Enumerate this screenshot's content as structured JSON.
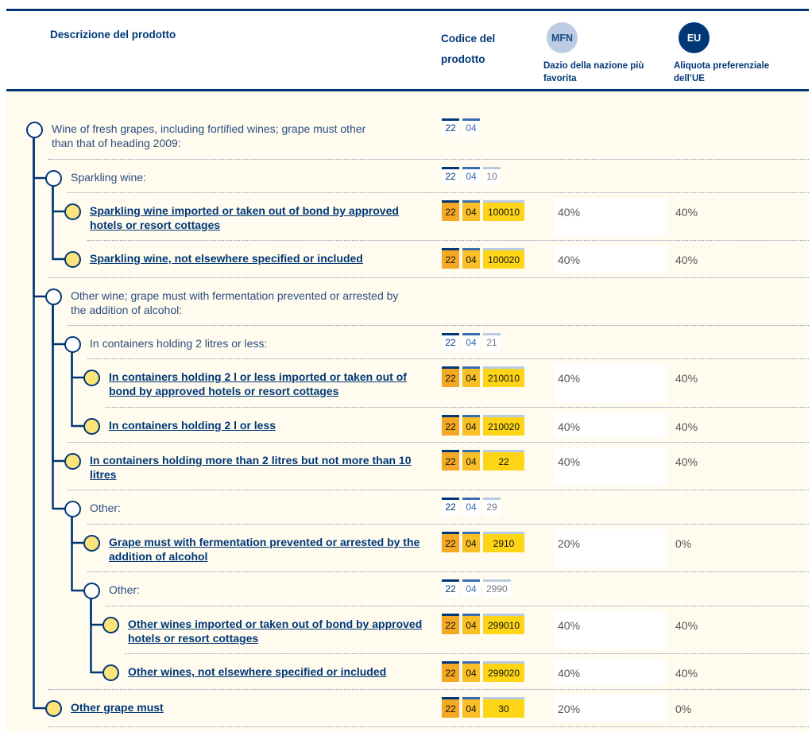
{
  "header": {
    "description": "Descrizione del prodotto",
    "code": "Codice del prodotto",
    "mfn_badge": "MFN",
    "mfn_label": "Dazio della nazione più favorita",
    "eu_badge": "EU",
    "eu_label": "Aliquota preferenziale dell’UE"
  },
  "colors": {
    "navy": "#003776",
    "mid_blue": "#3a6cb0",
    "light_blue": "#b8cbe3",
    "code_orange": "#f5a823",
    "code_amber": "#f9bf27",
    "code_yellow": "#ffd617",
    "background": "#fffcef"
  },
  "rows": [
    {
      "level": 0,
      "leaf": false,
      "description": "Wine of fresh grapes, including fortified wines; grape must other than that of heading 2009:",
      "code": [
        "22",
        "04"
      ]
    },
    {
      "level": 1,
      "leaf": false,
      "description": "Sparkling wine:",
      "code": [
        "22",
        "04",
        "10"
      ]
    },
    {
      "level": 2,
      "leaf": true,
      "description": "Sparkling wine imported or taken out of bond by approved hotels or resort cottages",
      "code": [
        "22",
        "04",
        "100010"
      ],
      "mfn": "40%",
      "eu": "40%"
    },
    {
      "level": 2,
      "leaf": true,
      "description": "Sparkling wine, not elsewhere specified or included",
      "code": [
        "22",
        "04",
        "100020"
      ],
      "mfn": "40%",
      "eu": "40%"
    },
    {
      "level": 1,
      "leaf": false,
      "description": "Other wine; grape must with fermentation prevented or arrested by the addition of alcohol:",
      "code": []
    },
    {
      "level": 2,
      "leaf": false,
      "description": "In containers holding 2 litres or less:",
      "code": [
        "22",
        "04",
        "21"
      ]
    },
    {
      "level": 3,
      "leaf": true,
      "description": "In containers holding 2 l or less imported or taken out of bond by approved hotels or resort cottages",
      "code": [
        "22",
        "04",
        "210010"
      ],
      "mfn": "40%",
      "eu": "40%"
    },
    {
      "level": 3,
      "leaf": true,
      "description": "In containers holding 2 l or less",
      "code": [
        "22",
        "04",
        "210020"
      ],
      "mfn": "40%",
      "eu": "40%"
    },
    {
      "level": 2,
      "leaf": true,
      "description": "In containers holding more than 2 litres but not more than 10 litres",
      "code": [
        "22",
        "04",
        "22"
      ],
      "mfn": "40%",
      "eu": "40%"
    },
    {
      "level": 2,
      "leaf": false,
      "description": "Other:",
      "code": [
        "22",
        "04",
        "29"
      ]
    },
    {
      "level": 3,
      "leaf": true,
      "description": "Grape must with fermentation prevented or arrested by the addition of alcohol",
      "code": [
        "22",
        "04",
        "2910"
      ],
      "mfn": "20%",
      "eu": "0%"
    },
    {
      "level": 3,
      "leaf": false,
      "description": "Other:",
      "code": [
        "22",
        "04",
        "2990"
      ]
    },
    {
      "level": 4,
      "leaf": true,
      "description": "Other wines imported or taken out of bond by approved hotels or resort cottages",
      "code": [
        "22",
        "04",
        "299010"
      ],
      "mfn": "40%",
      "eu": "40%"
    },
    {
      "level": 4,
      "leaf": true,
      "description": "Other wines, not elsewhere specified or included",
      "code": [
        "22",
        "04",
        "299020"
      ],
      "mfn": "40%",
      "eu": "40%"
    },
    {
      "level": 1,
      "leaf": true,
      "description": "Other grape must",
      "code": [
        "22",
        "04",
        "30"
      ],
      "mfn": "20%",
      "eu": "0%"
    }
  ]
}
